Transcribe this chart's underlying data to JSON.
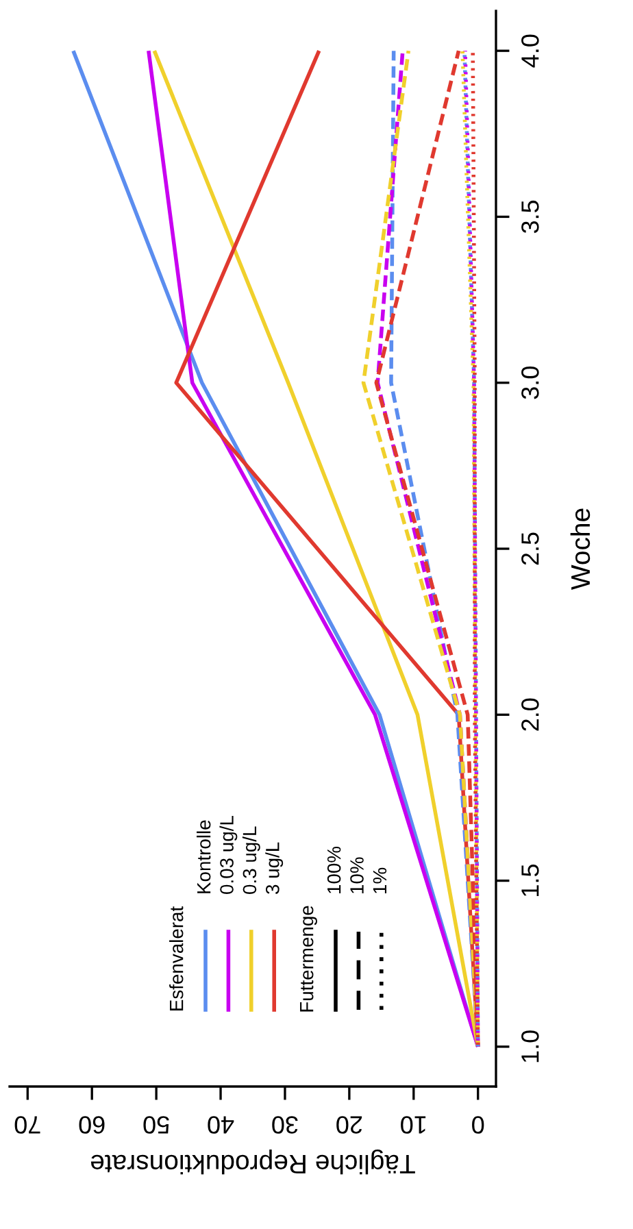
{
  "chart_data": {
    "type": "line",
    "xlabel": "Tägliche Reproduktionsrate",
    "ylabel": "Woche",
    "xlim": [
      72.8,
      -2.8
    ],
    "xticks": [
      0,
      10,
      20,
      30,
      40,
      50,
      60,
      70
    ],
    "ylim": [
      0.88,
      4.12
    ],
    "yticks": [
      {
        "value": 1,
        "label": "1.0"
      },
      {
        "value": 1.5,
        "label": "1.5"
      },
      {
        "value": 2,
        "label": "2.0"
      },
      {
        "value": 2.5,
        "label": "2.5"
      },
      {
        "value": 3,
        "label": "3.0"
      },
      {
        "value": 3.5,
        "label": "3.5"
      },
      {
        "value": 4,
        "label": "4.0"
      }
    ],
    "grid": false,
    "series": [
      {
        "color": "#5b8def",
        "line_style": "solid",
        "x": [
          0,
          15.3,
          42.9,
          62.9
        ],
        "values": [
          1,
          2,
          3,
          4
        ]
      },
      {
        "color": "#c800f0",
        "line_style": "solid",
        "x": [
          0,
          16,
          44.4,
          51.2
        ],
        "values": [
          1,
          2,
          3,
          4
        ]
      },
      {
        "color": "#f0d02c",
        "line_style": "solid",
        "x": [
          0,
          9.4,
          29.5,
          50.3
        ],
        "values": [
          1,
          2,
          3,
          4
        ]
      },
      {
        "color": "#e0392f",
        "line_style": "solid",
        "x": [
          0,
          3,
          46.9,
          24.7
        ],
        "values": [
          1,
          2,
          3,
          4
        ]
      },
      {
        "color": "#5b8def",
        "line_style": "dashed",
        "x": [
          0,
          3.2,
          13.5,
          13.1
        ],
        "values": [
          1,
          2,
          3,
          4
        ]
      },
      {
        "color": "#c800f0",
        "line_style": "dashed",
        "x": [
          0,
          2.8,
          15.6,
          11.7
        ],
        "values": [
          1,
          2,
          3,
          4
        ]
      },
      {
        "color": "#f0d02c",
        "line_style": "dashed",
        "x": [
          0,
          2.8,
          17.8,
          10.8
        ],
        "values": [
          1,
          2,
          3,
          4
        ]
      },
      {
        "color": "#e0392f",
        "line_style": "dashed",
        "x": [
          0,
          1.6,
          15.8,
          3
        ],
        "values": [
          1,
          2,
          3,
          4
        ]
      },
      {
        "color": "#5b8def",
        "line_style": "dotted",
        "x": [
          0,
          0.3,
          0.6,
          2.1
        ],
        "values": [
          1,
          2,
          3,
          4
        ]
      },
      {
        "color": "#c800f0",
        "line_style": "dotted",
        "x": [
          0,
          0.3,
          0.6,
          2
        ],
        "values": [
          1,
          2,
          3,
          4
        ]
      },
      {
        "color": "#f0d02c",
        "line_style": "dotted",
        "x": [
          0,
          0.4,
          0.7,
          2.4
        ],
        "values": [
          1,
          2,
          3,
          4
        ]
      },
      {
        "color": "#e0392f",
        "line_style": "dotted",
        "x": [
          0,
          0.5,
          0.5,
          0.8
        ],
        "values": [
          1,
          2,
          3,
          4
        ]
      }
    ],
    "annotations": [
      "Esfenvalerat",
      "Kontrolle",
      "0.03 ug/L",
      "0.3 ug/L",
      "3 ug/L",
      "Futtermenge",
      "100%",
      "10%",
      "1%"
    ]
  }
}
